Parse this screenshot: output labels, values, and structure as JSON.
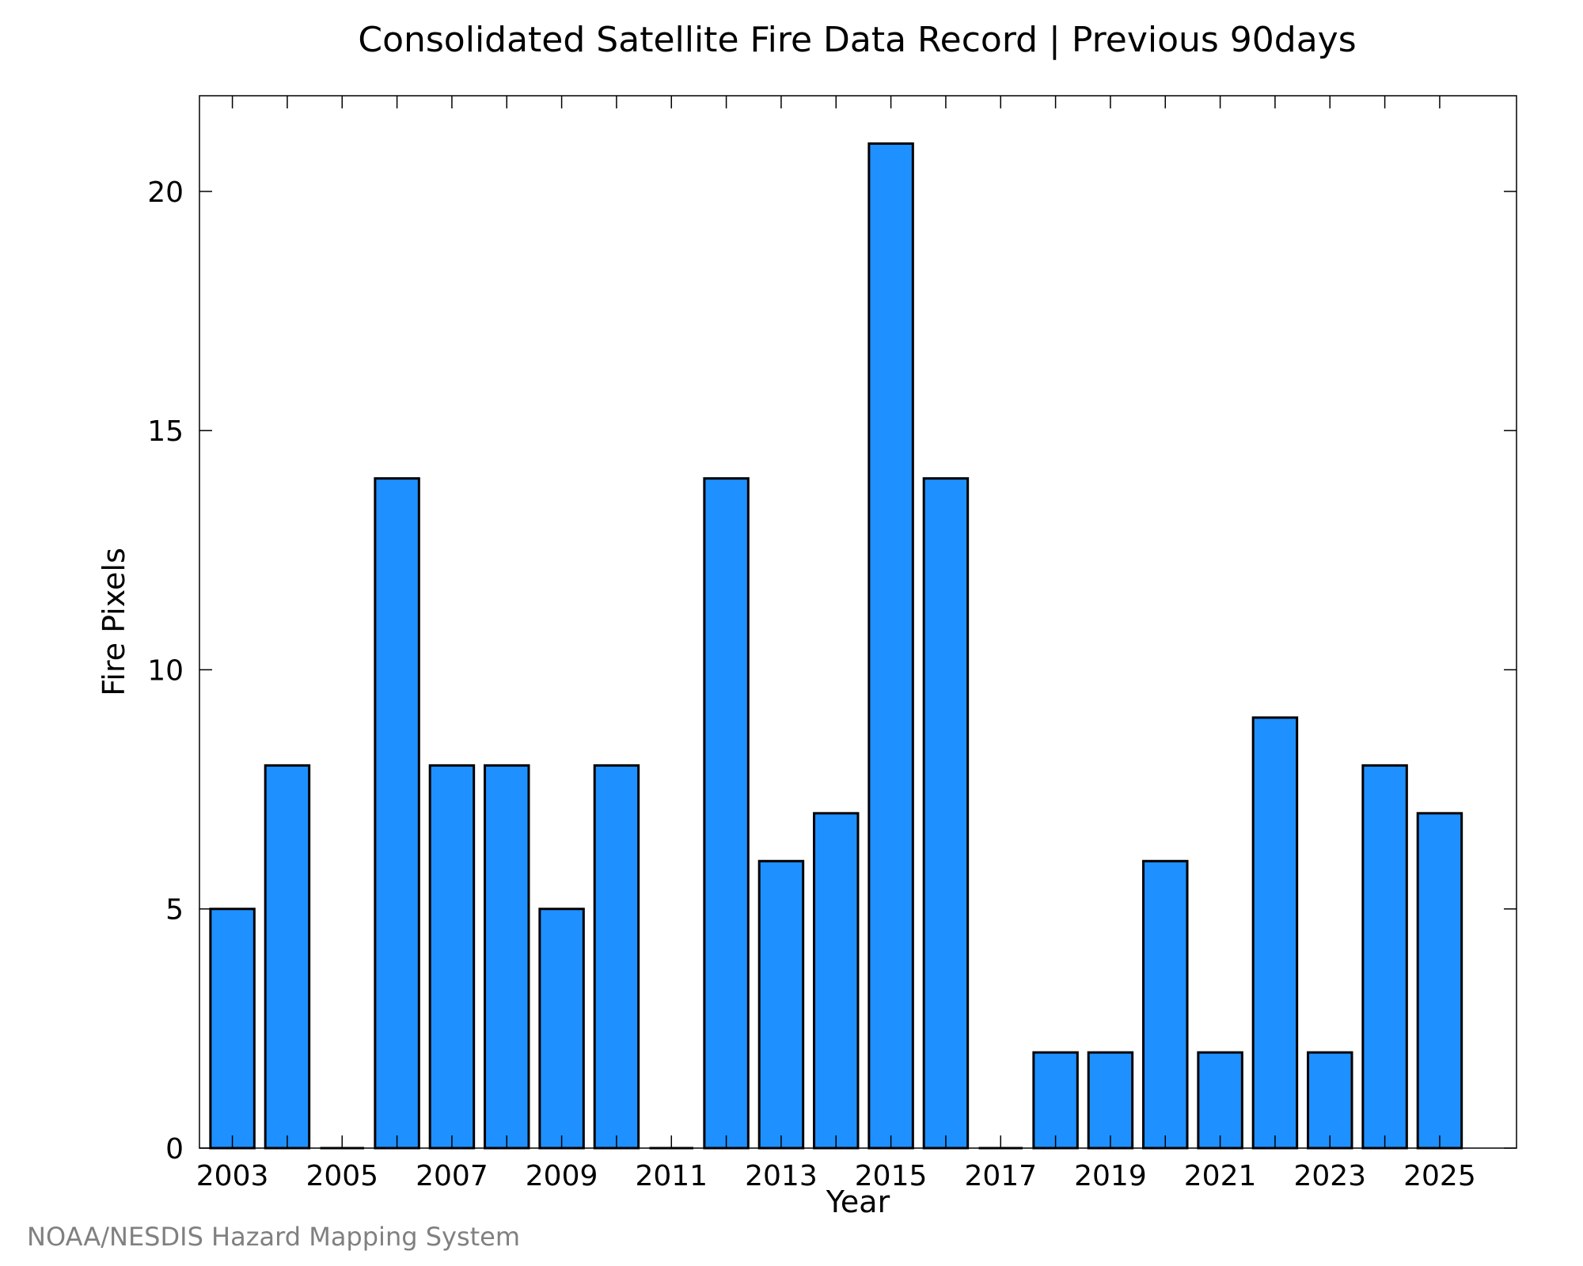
{
  "chart_data": {
    "type": "bar",
    "title": "Consolidated Satellite Fire Data Record | Previous 90days",
    "xlabel": "Year",
    "ylabel": "Fire Pixels",
    "credit": "NOAA/NESDIS Hazard Mapping System",
    "categories": [
      "2003",
      "2004",
      "2005",
      "2006",
      "2007",
      "2008",
      "2009",
      "2010",
      "2011",
      "2012",
      "2013",
      "2014",
      "2015",
      "2016",
      "2017",
      "2018",
      "2019",
      "2020",
      "2021",
      "2022",
      "2023",
      "2024",
      "2025"
    ],
    "values": [
      5,
      8,
      0,
      14,
      8,
      8,
      5,
      8,
      0,
      14,
      6,
      7,
      21,
      14,
      0,
      2,
      2,
      6,
      2,
      9,
      2,
      8,
      7
    ],
    "x_tick_labels": [
      "2003",
      "2005",
      "2007",
      "2009",
      "2011",
      "2013",
      "2015",
      "2017",
      "2019",
      "2021",
      "2023",
      "2025"
    ],
    "y_tick_labels": [
      "0",
      "5",
      "10",
      "15",
      "20"
    ],
    "xlim": [
      2002.4,
      2026.4
    ],
    "ylim": [
      0,
      22
    ],
    "bar_color": "#1e90ff",
    "bar_edge_color": "#000000",
    "credit_color": "#808080",
    "grid": false,
    "legend": "none"
  }
}
